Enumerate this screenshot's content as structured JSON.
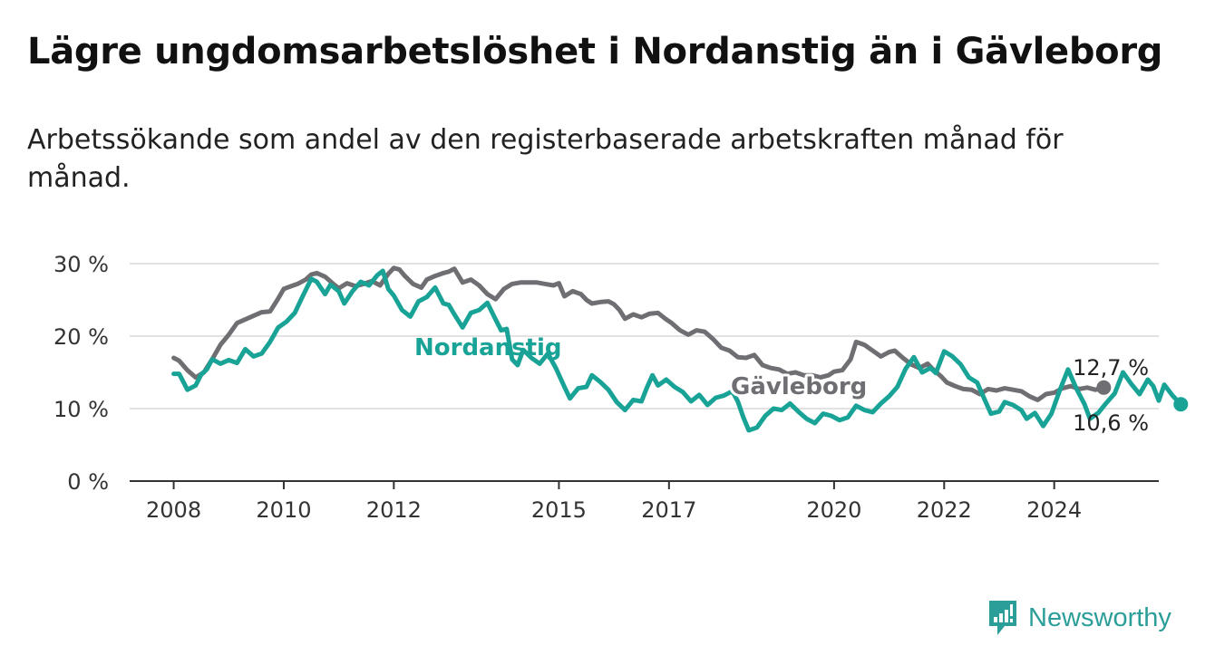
{
  "title": "Lägre ungdomsarbetslöshet i Nordanstig än i Gävleborg",
  "subtitle": "Arbetssökande som andel av den registerbaserade arbetskraften månad för månad.",
  "brand": {
    "name": "Newsworthy",
    "icon": "bar-chart-icon",
    "color": "#2b9e9a"
  },
  "chart_data": {
    "type": "line",
    "yunit": "%",
    "ylim": [
      0,
      30
    ],
    "yticks": [
      {
        "value": 0,
        "label": "0 %"
      },
      {
        "value": 10,
        "label": "10 %"
      },
      {
        "value": 20,
        "label": "20 %"
      },
      {
        "value": 30,
        "label": "30 %"
      }
    ],
    "xticks": [
      {
        "value": 2008,
        "label": "2008"
      },
      {
        "value": 2010,
        "label": "2010"
      },
      {
        "value": 2012,
        "label": "2012"
      },
      {
        "value": 2015,
        "label": "2015"
      },
      {
        "value": 2017,
        "label": "2017"
      },
      {
        "value": 2020,
        "label": "2020"
      },
      {
        "value": 2022,
        "label": "2022"
      },
      {
        "value": 2024,
        "label": "2024"
      }
    ],
    "xlim": [
      2007.2,
      2025.9
    ],
    "grid": true,
    "series": [
      {
        "name": "Gävleborg",
        "color": "#6f6e73",
        "end_label": "12,7 %",
        "points": [
          [
            2008.0,
            17.0
          ],
          [
            2008.1,
            16.6
          ],
          [
            2008.25,
            15.3
          ],
          [
            2008.4,
            14.3
          ],
          [
            2008.55,
            15.0
          ],
          [
            2008.7,
            16.8
          ],
          [
            2008.85,
            18.8
          ],
          [
            2009.0,
            20.2
          ],
          [
            2009.15,
            21.8
          ],
          [
            2009.3,
            22.3
          ],
          [
            2009.45,
            22.8
          ],
          [
            2009.6,
            23.3
          ],
          [
            2009.75,
            23.4
          ],
          [
            2009.9,
            25.2
          ],
          [
            2010.0,
            26.5
          ],
          [
            2010.1,
            26.8
          ],
          [
            2010.25,
            27.2
          ],
          [
            2010.4,
            27.8
          ],
          [
            2010.5,
            28.5
          ],
          [
            2010.6,
            28.7
          ],
          [
            2010.75,
            28.2
          ],
          [
            2010.9,
            27.2
          ],
          [
            2011.0,
            26.6
          ],
          [
            2011.15,
            27.3
          ],
          [
            2011.3,
            26.9
          ],
          [
            2011.45,
            27.2
          ],
          [
            2011.6,
            27.6
          ],
          [
            2011.75,
            27.0
          ],
          [
            2011.9,
            28.6
          ],
          [
            2012.0,
            29.4
          ],
          [
            2012.1,
            29.2
          ],
          [
            2012.2,
            28.3
          ],
          [
            2012.35,
            27.2
          ],
          [
            2012.5,
            26.7
          ],
          [
            2012.6,
            27.8
          ],
          [
            2012.75,
            28.3
          ],
          [
            2012.9,
            28.7
          ],
          [
            2013.0,
            28.9
          ],
          [
            2013.1,
            29.3
          ],
          [
            2013.25,
            27.4
          ],
          [
            2013.4,
            27.8
          ],
          [
            2013.55,
            27.0
          ],
          [
            2013.7,
            25.8
          ],
          [
            2013.85,
            25.1
          ],
          [
            2014.0,
            26.5
          ],
          [
            2014.15,
            27.2
          ],
          [
            2014.3,
            27.4
          ],
          [
            2014.45,
            27.4
          ],
          [
            2014.6,
            27.4
          ],
          [
            2014.75,
            27.2
          ],
          [
            2014.9,
            27.0
          ],
          [
            2015.0,
            27.3
          ],
          [
            2015.1,
            25.5
          ],
          [
            2015.25,
            26.2
          ],
          [
            2015.4,
            25.8
          ],
          [
            2015.5,
            25.0
          ],
          [
            2015.6,
            24.5
          ],
          [
            2015.75,
            24.7
          ],
          [
            2015.9,
            24.8
          ],
          [
            2016.0,
            24.4
          ],
          [
            2016.1,
            23.6
          ],
          [
            2016.2,
            22.4
          ],
          [
            2016.35,
            23.0
          ],
          [
            2016.5,
            22.6
          ],
          [
            2016.65,
            23.1
          ],
          [
            2016.8,
            23.2
          ],
          [
            2016.95,
            22.3
          ],
          [
            2017.05,
            21.8
          ],
          [
            2017.2,
            20.8
          ],
          [
            2017.35,
            20.2
          ],
          [
            2017.5,
            20.8
          ],
          [
            2017.65,
            20.6
          ],
          [
            2017.8,
            19.6
          ],
          [
            2017.95,
            18.4
          ],
          [
            2018.1,
            18.0
          ],
          [
            2018.25,
            17.1
          ],
          [
            2018.4,
            17.0
          ],
          [
            2018.55,
            17.4
          ],
          [
            2018.7,
            16.0
          ],
          [
            2018.85,
            15.6
          ],
          [
            2019.0,
            15.4
          ],
          [
            2019.15,
            14.8
          ],
          [
            2019.3,
            15.0
          ],
          [
            2019.45,
            14.6
          ],
          [
            2019.6,
            14.6
          ],
          [
            2019.75,
            14.3
          ],
          [
            2019.9,
            14.6
          ],
          [
            2020.0,
            15.1
          ],
          [
            2020.15,
            15.3
          ],
          [
            2020.3,
            16.8
          ],
          [
            2020.4,
            19.2
          ],
          [
            2020.55,
            18.8
          ],
          [
            2020.7,
            18.0
          ],
          [
            2020.85,
            17.2
          ],
          [
            2021.0,
            17.8
          ],
          [
            2021.1,
            18.0
          ],
          [
            2021.25,
            17.0
          ],
          [
            2021.4,
            16.1
          ],
          [
            2021.55,
            15.6
          ],
          [
            2021.7,
            16.2
          ],
          [
            2021.8,
            15.4
          ],
          [
            2021.95,
            14.4
          ],
          [
            2022.05,
            13.6
          ],
          [
            2022.2,
            13.1
          ],
          [
            2022.35,
            12.7
          ],
          [
            2022.5,
            12.6
          ],
          [
            2022.65,
            12.0
          ],
          [
            2022.8,
            12.7
          ],
          [
            2022.95,
            12.5
          ],
          [
            2023.1,
            12.8
          ],
          [
            2023.25,
            12.6
          ],
          [
            2023.4,
            12.4
          ],
          [
            2023.55,
            11.7
          ],
          [
            2023.7,
            11.2
          ],
          [
            2023.85,
            12.0
          ],
          [
            2024.0,
            12.2
          ],
          [
            2024.15,
            12.8
          ],
          [
            2024.3,
            13.1
          ],
          [
            2024.45,
            12.7
          ],
          [
            2024.6,
            12.9
          ],
          [
            2024.75,
            12.6
          ],
          [
            2024.9,
            12.9
          ]
        ]
      },
      {
        "name": "Nordanstig",
        "color": "#18a396",
        "end_label": "10,6 %",
        "points": [
          [
            2008.0,
            14.8
          ],
          [
            2008.1,
            14.8
          ],
          [
            2008.25,
            12.6
          ],
          [
            2008.4,
            13.2
          ],
          [
            2008.5,
            14.7
          ],
          [
            2008.6,
            15.4
          ],
          [
            2008.7,
            16.8
          ],
          [
            2008.85,
            16.2
          ],
          [
            2009.0,
            16.7
          ],
          [
            2009.15,
            16.3
          ],
          [
            2009.3,
            18.2
          ],
          [
            2009.45,
            17.2
          ],
          [
            2009.6,
            17.6
          ],
          [
            2009.75,
            19.2
          ],
          [
            2009.9,
            21.2
          ],
          [
            2010.05,
            22.0
          ],
          [
            2010.2,
            23.2
          ],
          [
            2010.35,
            25.6
          ],
          [
            2010.5,
            27.9
          ],
          [
            2010.6,
            27.5
          ],
          [
            2010.75,
            25.8
          ],
          [
            2010.85,
            27.1
          ],
          [
            2011.0,
            26.2
          ],
          [
            2011.1,
            24.5
          ],
          [
            2011.25,
            26.2
          ],
          [
            2011.4,
            27.5
          ],
          [
            2011.55,
            27.0
          ],
          [
            2011.7,
            28.4
          ],
          [
            2011.8,
            29.0
          ],
          [
            2011.9,
            26.5
          ],
          [
            2012.0,
            25.6
          ],
          [
            2012.15,
            23.6
          ],
          [
            2012.3,
            22.7
          ],
          [
            2012.45,
            24.8
          ],
          [
            2012.6,
            25.4
          ],
          [
            2012.75,
            26.7
          ],
          [
            2012.9,
            24.5
          ],
          [
            2013.0,
            24.3
          ],
          [
            2013.1,
            23.0
          ],
          [
            2013.25,
            21.2
          ],
          [
            2013.4,
            23.2
          ],
          [
            2013.55,
            23.6
          ],
          [
            2013.7,
            24.6
          ],
          [
            2013.85,
            22.3
          ],
          [
            2013.95,
            20.8
          ],
          [
            2014.05,
            21.0
          ],
          [
            2014.15,
            16.8
          ],
          [
            2014.25,
            16.0
          ],
          [
            2014.35,
            18.1
          ],
          [
            2014.5,
            17.0
          ],
          [
            2014.65,
            16.2
          ],
          [
            2014.8,
            17.6
          ],
          [
            2014.95,
            15.5
          ],
          [
            2015.1,
            13.0
          ],
          [
            2015.2,
            11.4
          ],
          [
            2015.35,
            12.8
          ],
          [
            2015.5,
            13.0
          ],
          [
            2015.6,
            14.6
          ],
          [
            2015.75,
            13.7
          ],
          [
            2015.9,
            12.6
          ],
          [
            2016.05,
            10.9
          ],
          [
            2016.2,
            9.8
          ],
          [
            2016.35,
            11.2
          ],
          [
            2016.5,
            11.0
          ],
          [
            2016.6,
            12.9
          ],
          [
            2016.7,
            14.6
          ],
          [
            2016.8,
            13.2
          ],
          [
            2016.95,
            14.0
          ],
          [
            2017.1,
            13.0
          ],
          [
            2017.25,
            12.3
          ],
          [
            2017.4,
            11.0
          ],
          [
            2017.55,
            11.9
          ],
          [
            2017.7,
            10.5
          ],
          [
            2017.85,
            11.5
          ],
          [
            2018.0,
            11.8
          ],
          [
            2018.15,
            12.4
          ],
          [
            2018.25,
            11.0
          ],
          [
            2018.35,
            8.8
          ],
          [
            2018.45,
            7.0
          ],
          [
            2018.6,
            7.4
          ],
          [
            2018.75,
            9.0
          ],
          [
            2018.9,
            10.0
          ],
          [
            2019.05,
            9.8
          ],
          [
            2019.2,
            10.7
          ],
          [
            2019.35,
            9.6
          ],
          [
            2019.5,
            8.6
          ],
          [
            2019.65,
            8.0
          ],
          [
            2019.8,
            9.3
          ],
          [
            2019.95,
            9.0
          ],
          [
            2020.1,
            8.4
          ],
          [
            2020.25,
            8.8
          ],
          [
            2020.4,
            10.4
          ],
          [
            2020.55,
            9.8
          ],
          [
            2020.7,
            9.5
          ],
          [
            2020.85,
            10.7
          ],
          [
            2021.0,
            11.7
          ],
          [
            2021.15,
            13.0
          ],
          [
            2021.3,
            15.5
          ],
          [
            2021.45,
            17.1
          ],
          [
            2021.6,
            15.0
          ],
          [
            2021.75,
            15.6
          ],
          [
            2021.85,
            14.9
          ],
          [
            2022.0,
            17.9
          ],
          [
            2022.15,
            17.2
          ],
          [
            2022.3,
            16.1
          ],
          [
            2022.45,
            14.3
          ],
          [
            2022.6,
            13.6
          ],
          [
            2022.75,
            11.0
          ],
          [
            2022.85,
            9.3
          ],
          [
            2023.0,
            9.6
          ],
          [
            2023.1,
            10.9
          ],
          [
            2023.25,
            10.5
          ],
          [
            2023.4,
            9.8
          ],
          [
            2023.5,
            8.6
          ],
          [
            2023.65,
            9.4
          ],
          [
            2023.8,
            7.6
          ],
          [
            2023.95,
            9.3
          ],
          [
            2024.1,
            12.5
          ],
          [
            2024.25,
            15.4
          ],
          [
            2024.4,
            12.8
          ],
          [
            2024.55,
            10.6
          ],
          [
            2024.65,
            8.6
          ],
          [
            2024.8,
            9.4
          ],
          [
            2024.95,
            10.8
          ],
          [
            2025.1,
            12.1
          ],
          [
            2025.25,
            15.0
          ],
          [
            2025.4,
            13.4
          ],
          [
            2025.55,
            12.0
          ],
          [
            2025.7,
            14.0
          ],
          [
            2025.8,
            13.1
          ],
          [
            2025.9,
            11.1
          ],
          [
            2026.0,
            13.3
          ],
          [
            2026.15,
            11.8
          ],
          [
            2026.3,
            10.6
          ]
        ]
      }
    ],
    "series_labels": [
      "Nordanstig",
      "Gävleborg"
    ]
  }
}
